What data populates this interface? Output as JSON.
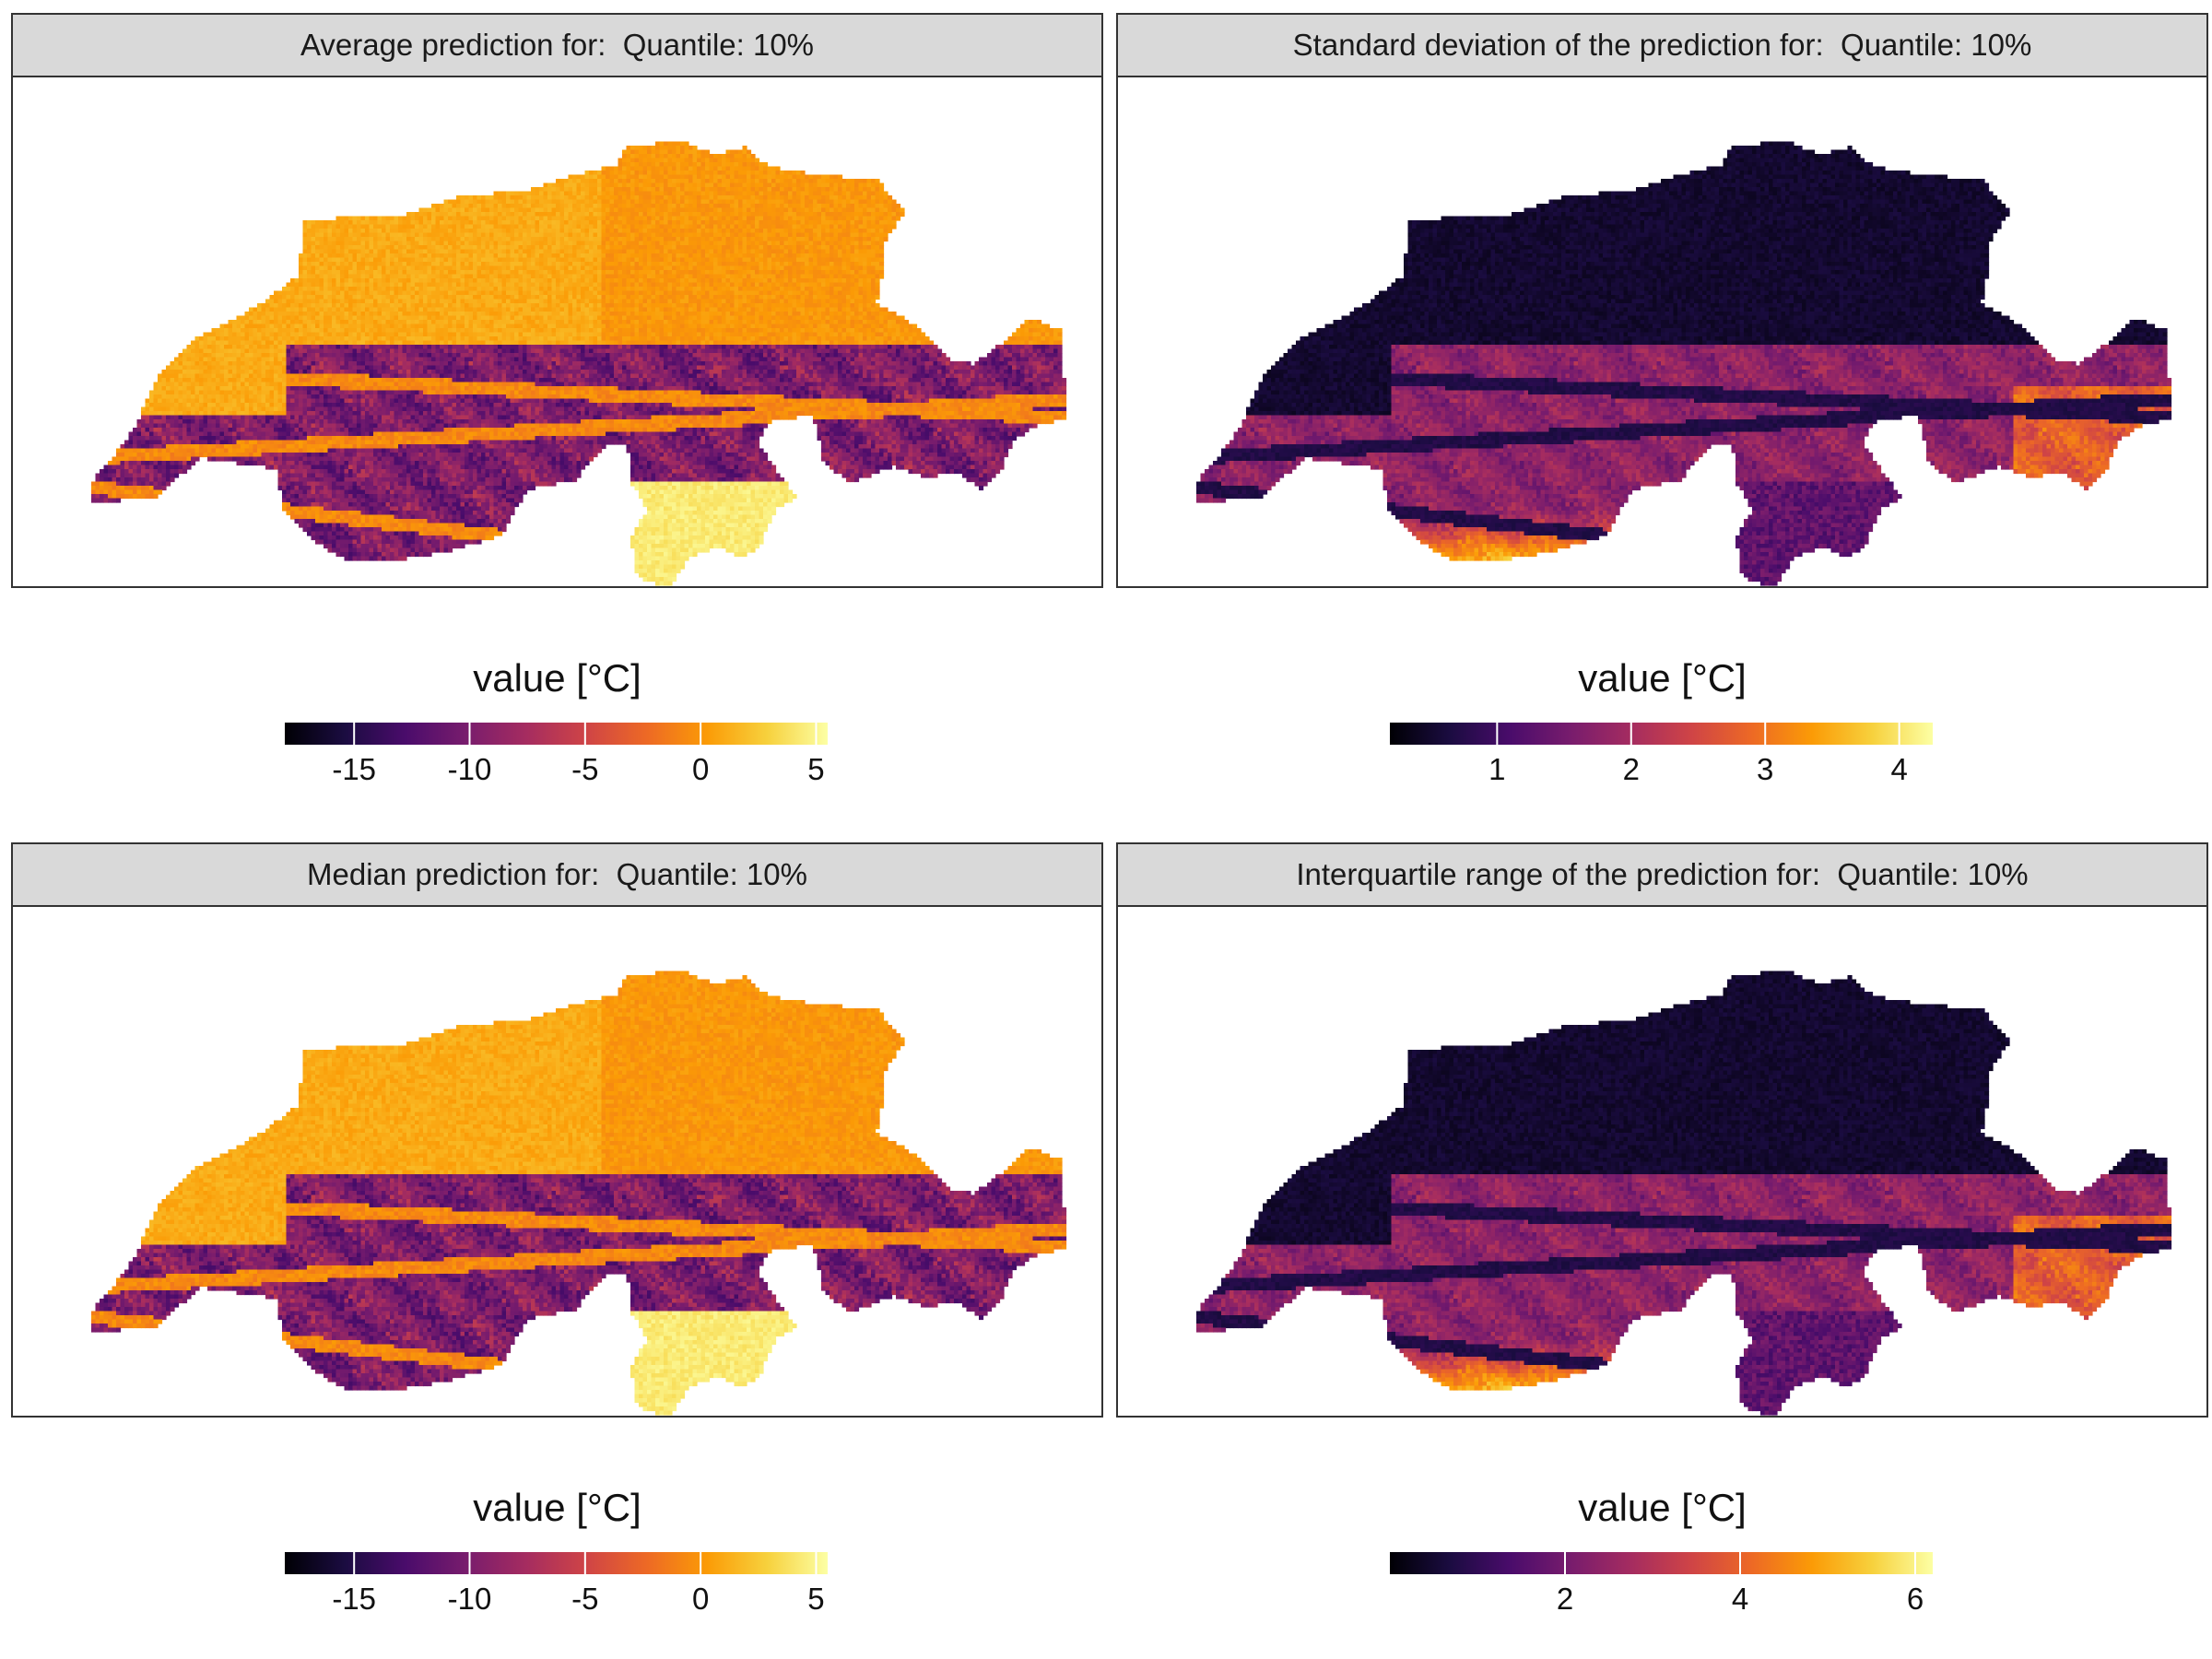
{
  "figure": {
    "panels": [
      {
        "id": "mean",
        "title": "Average prediction for:  Quantile: 10%",
        "palette": "inferno",
        "legend": {
          "title": "value [°C]",
          "min": -18,
          "max": 5.5,
          "ticks": [
            -15,
            -10,
            -5,
            0,
            5
          ]
        }
      },
      {
        "id": "sd",
        "title": "Standard deviation of the prediction for:  Quantile: 10%",
        "palette": "inferno",
        "legend": {
          "title": "value [°C]",
          "min": 0.2,
          "max": 4.25,
          "ticks": [
            1,
            2,
            3,
            4
          ]
        }
      },
      {
        "id": "median",
        "title": "Median prediction for:  Quantile: 10%",
        "palette": "inferno",
        "legend": {
          "title": "value [°C]",
          "min": -18,
          "max": 5.5,
          "ticks": [
            -15,
            -10,
            -5,
            0,
            5
          ]
        }
      },
      {
        "id": "iqr",
        "title": "Interquartile range of the prediction for:  Quantile: 10%",
        "palette": "inferno",
        "legend": {
          "title": "value [°C]",
          "min": 0,
          "max": 6.2,
          "ticks": [
            2,
            4,
            6
          ]
        }
      }
    ]
  },
  "chart_data": [
    {
      "type": "heatmap",
      "title": "Average prediction for:  Quantile: 10%",
      "region": "Switzerland",
      "legend_title": "value [°C]",
      "color_range": [
        -18,
        5.5
      ],
      "ticks": [
        -15,
        -10,
        -5,
        0,
        5
      ],
      "typical_values": {
        "plateau": 1.5,
        "alpine_valleys": -4,
        "alpine_peaks": -16,
        "ticino_south": 4.5
      }
    },
    {
      "type": "heatmap",
      "title": "Standard deviation of the prediction for:  Quantile: 10%",
      "region": "Switzerland",
      "legend_title": "value [°C]",
      "color_range": [
        0.2,
        4.25
      ],
      "ticks": [
        1,
        2,
        3,
        4
      ],
      "typical_values": {
        "plateau": 0.4,
        "alpine_interior": 1.7,
        "southern_edge": 3.9
      }
    },
    {
      "type": "heatmap",
      "title": "Median prediction for:  Quantile: 10%",
      "region": "Switzerland",
      "legend_title": "value [°C]",
      "color_range": [
        -18,
        5.5
      ],
      "ticks": [
        -15,
        -10,
        -5,
        0,
        5
      ],
      "typical_values": {
        "plateau": 1.5,
        "alpine_valleys": -4,
        "alpine_peaks": -16,
        "ticino_south": 4.5
      }
    },
    {
      "type": "heatmap",
      "title": "Interquartile range of the prediction for:  Quantile: 10%",
      "region": "Switzerland",
      "legend_title": "value [°C]",
      "color_range": [
        0,
        6.2
      ],
      "ticks": [
        2,
        4,
        6
      ],
      "typical_values": {
        "plateau": 0.5,
        "alpine_interior": 2.4,
        "southern_edge": 5.6
      }
    }
  ]
}
